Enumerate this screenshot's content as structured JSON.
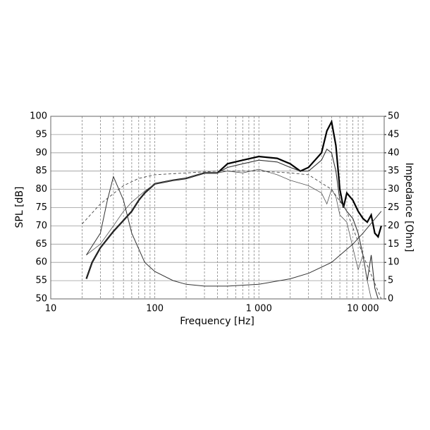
{
  "chart_data": {
    "type": "line",
    "xscale": "log",
    "grid": true,
    "xlabel": "Frequency [Hz]",
    "ylabel": "SPL [dB]",
    "y2label": "Impedance [Ohm]",
    "xlim": [
      10,
      16000
    ],
    "xticks": [
      10,
      100,
      {
        "value": 1000,
        "label": "1 000"
      },
      {
        "value": 10000,
        "label": "10 000"
      }
    ],
    "ylim": [
      50,
      100
    ],
    "yticks": [
      50,
      55,
      60,
      65,
      70,
      75,
      80,
      85,
      90,
      95,
      100
    ],
    "y2lim": [
      0,
      50
    ],
    "y2ticks": [
      0,
      5,
      10,
      15,
      20,
      25,
      30,
      35,
      40,
      45,
      50
    ],
    "series": [
      {
        "color": "#000000",
        "x": [
          22,
          25,
          30,
          40,
          50,
          60,
          70,
          80,
          100,
          150,
          200,
          300,
          400,
          500,
          700,
          1000,
          1500,
          2000,
          2500,
          3000,
          4000,
          4500,
          5000,
          5500,
          6000,
          6500,
          7000,
          8000,
          9000,
          10000,
          11000,
          12000,
          13000,
          14000,
          15000
        ],
        "values": [
          55.5,
          60,
          64,
          68.5,
          71.5,
          74,
          77,
          79,
          81.5,
          82.5,
          83,
          84.5,
          84.5,
          87,
          88,
          89,
          88.5,
          87,
          85,
          86,
          90,
          96,
          98.5,
          92,
          80,
          75,
          79,
          77,
          74,
          72,
          71,
          73,
          68,
          67,
          70
        ]
      },
      {
        "color": "#333333",
        "x": [
          22,
          25,
          30,
          40,
          50,
          60,
          70,
          80,
          100,
          150,
          200,
          300,
          400,
          500,
          700,
          1000,
          1500,
          2000,
          2500,
          3000,
          4000,
          4500,
          5000,
          5500,
          6000,
          7000,
          8000,
          9000,
          10000,
          11000,
          12000,
          13000,
          14000
        ],
        "values": [
          55.5,
          60,
          64,
          68.5,
          71.5,
          74,
          77,
          79,
          81.5,
          82.5,
          83,
          84.5,
          84.5,
          86,
          87,
          88,
          87.5,
          86,
          85,
          85,
          88,
          91,
          90,
          85,
          77,
          74,
          72,
          68,
          62,
          55,
          62,
          53,
          50
        ]
      },
      {
        "color": "#555555",
        "x": [
          22,
          30,
          40,
          50,
          60,
          80,
          100,
          150,
          200,
          300,
          400,
          500,
          700,
          1000,
          1500,
          2000,
          3000,
          4000,
          4500,
          5000,
          5500,
          6000,
          7000,
          8000,
          9000,
          10000,
          11000,
          12000
        ],
        "values": [
          62,
          65,
          70,
          74,
          76.5,
          79.5,
          81.5,
          82.5,
          83,
          84.5,
          84.5,
          85,
          84.5,
          85.5,
          84,
          82.5,
          81,
          79,
          76,
          80,
          78,
          73,
          71,
          64,
          58,
          62,
          55,
          50
        ]
      },
      {
        "color": "#333333",
        "axis": "y2",
        "x": [
          22,
          30,
          35,
          40,
          50,
          60,
          80,
          100,
          150,
          200,
          300,
          500,
          1000,
          2000,
          3000,
          5000,
          8000,
          10000,
          15000
        ],
        "values": [
          12,
          18,
          27,
          33.5,
          27,
          18,
          10,
          7.5,
          5,
          4,
          3.5,
          3.5,
          4,
          5.5,
          7,
          10,
          15,
          18,
          24
        ]
      },
      {
        "color": "#444444",
        "dash": true,
        "x": [
          20,
          30,
          50,
          70,
          100,
          200,
          400,
          1000,
          2000,
          3000,
          5000,
          7000,
          10000,
          15000
        ],
        "values": [
          70.5,
          76,
          81,
          83,
          84,
          84.5,
          85,
          85,
          84.5,
          84,
          80,
          74,
          62,
          50
        ]
      }
    ]
  }
}
